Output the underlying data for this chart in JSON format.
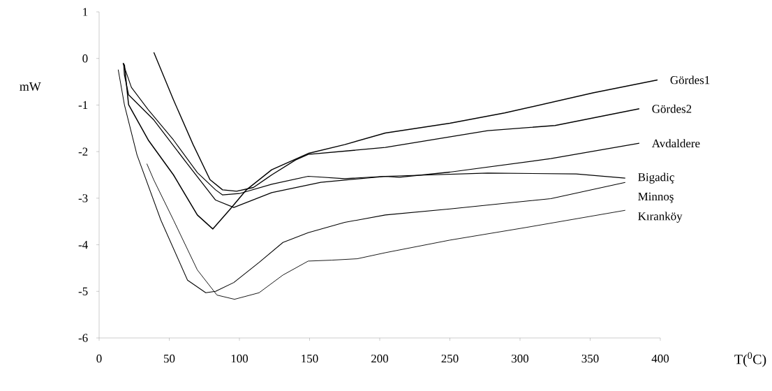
{
  "chart_data": {
    "type": "line",
    "xlabel": "T($^{0}$C)",
    "ylabel": "mW",
    "xlim": [
      0,
      400
    ],
    "ylim": [
      -6,
      1
    ],
    "xticks": [
      0,
      50,
      100,
      150,
      200,
      250,
      300,
      350,
      400
    ],
    "yticks": [
      -6,
      -5,
      -4,
      -3,
      -2,
      -1,
      0,
      1
    ],
    "line_style": "solid",
    "series": [
      {
        "name": "Gördes1",
        "color": "#000000",
        "x": [
          18,
          21,
          35,
          53,
          70,
          81,
          93,
          105,
          123,
          149,
          175,
          204,
          250,
          289,
          352,
          398
        ],
        "values": [
          -0.13,
          -0.99,
          -1.75,
          -2.5,
          -3.36,
          -3.66,
          -3.25,
          -2.82,
          -2.39,
          -2.04,
          -1.85,
          -1.6,
          -1.39,
          -1.17,
          -0.74,
          -0.46
        ]
      },
      {
        "name": "Gördes2",
        "color": "#000000",
        "x": [
          39,
          53,
          67,
          79,
          88,
          98,
          110,
          123,
          140,
          149,
          204,
          277,
          325,
          385
        ],
        "values": [
          0.13,
          -0.89,
          -1.85,
          -2.6,
          -2.82,
          -2.85,
          -2.77,
          -2.5,
          -2.18,
          -2.06,
          -1.91,
          -1.55,
          -1.44,
          -1.08
        ]
      },
      {
        "name": "Avdaldere",
        "color": "#000000",
        "x": [
          17.5,
          18,
          21,
          39,
          62,
          83,
          96,
          123,
          158,
          204,
          214,
          250,
          322,
          385
        ],
        "values": [
          -0.1,
          -0.35,
          -0.78,
          -1.32,
          -2.23,
          -3.04,
          -3.2,
          -2.88,
          -2.66,
          -2.53,
          -2.55,
          -2.44,
          -2.15,
          -1.82
        ]
      },
      {
        "name": "Bigadiç",
        "color": "#000000",
        "x": [
          17,
          23,
          35,
          53,
          70,
          83,
          88,
          100,
          123,
          149,
          175,
          204,
          277,
          340,
          375
        ],
        "values": [
          -0.1,
          -0.62,
          -1.1,
          -1.75,
          -2.45,
          -2.82,
          -2.93,
          -2.9,
          -2.7,
          -2.53,
          -2.58,
          -2.53,
          -2.46,
          -2.48,
          -2.57
        ]
      },
      {
        "name": "Minnoş",
        "color": "#000000",
        "x": [
          13.6,
          18,
          27,
          44,
          63,
          76,
          83,
          96,
          114,
          131,
          149,
          175,
          204,
          250,
          322,
          375
        ],
        "values": [
          -0.24,
          -0.99,
          -2.07,
          -3.47,
          -4.76,
          -5.03,
          -5.0,
          -4.81,
          -4.38,
          -3.95,
          -3.74,
          -3.52,
          -3.36,
          -3.23,
          -3.01,
          -2.66
        ]
      },
      {
        "name": "Kıranköy",
        "color": "#000000",
        "x": [
          34,
          39,
          53,
          70,
          84,
          96.5,
          114,
          131,
          149,
          166,
          184,
          204,
          250,
          304,
          375
        ],
        "values": [
          -2.26,
          -2.61,
          -3.47,
          -4.54,
          -5.08,
          -5.17,
          -5.03,
          -4.65,
          -4.35,
          -4.33,
          -4.3,
          -4.17,
          -3.9,
          -3.63,
          -3.26
        ]
      }
    ]
  }
}
